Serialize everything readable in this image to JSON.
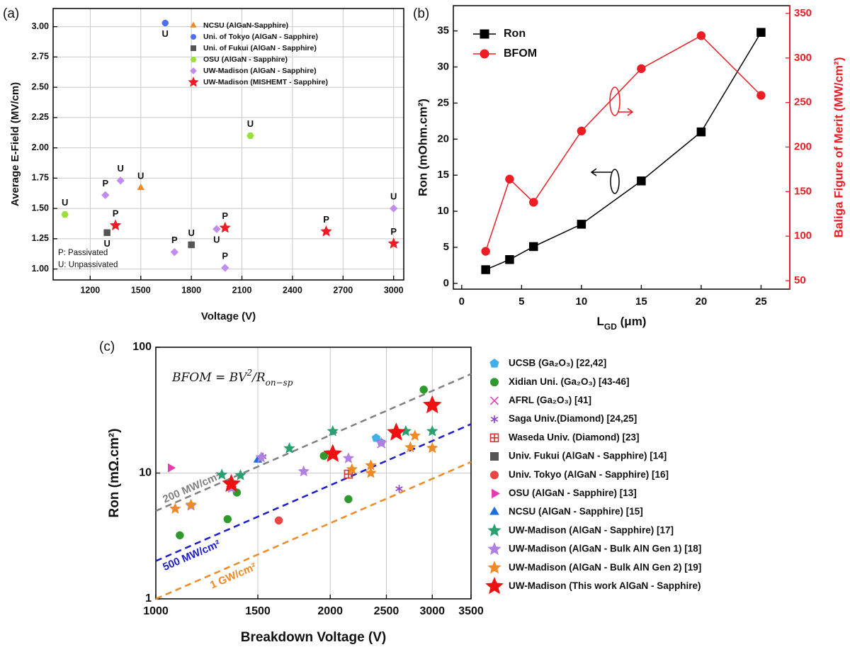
{
  "chart_data": [
    {
      "type": "scatter",
      "panel": "(a)",
      "xlabel": "Voltage (V)",
      "ylabel": "Average E-Field (MV/cm)",
      "xlim": [
        980,
        3060
      ],
      "ylim": [
        0.91,
        3.15
      ],
      "xticks": [
        1200,
        1500,
        1800,
        2100,
        2400,
        2700,
        3000
      ],
      "yticks": [
        {
          "value": 1,
          "label": "1.00"
        },
        {
          "value": 1.25,
          "label": "1.25"
        },
        {
          "value": 1.5,
          "label": "1.50"
        },
        {
          "value": 1.75,
          "label": "1.75"
        },
        {
          "value": 2,
          "label": "2.00"
        },
        {
          "value": 2.25,
          "label": "2.25"
        },
        {
          "value": 2.5,
          "label": "2.50"
        },
        {
          "value": 2.75,
          "label": "2.75"
        },
        {
          "value": 3,
          "label": "3.00"
        }
      ],
      "grid": true,
      "legend": "upper right",
      "notes": [
        "P: Passivated",
        "U: Unpassivated"
      ],
      "series": [
        {
          "name": "NCSU (AlGaN-Sapphire)",
          "color": "#f08a24",
          "marker": "triangle",
          "x": [
            1500
          ],
          "values": [
            1.67
          ],
          "point_labels": [
            "U"
          ]
        },
        {
          "name": "Uni. of Tokyo (AlGaN - Sapphire)",
          "color": "#4f6ef0",
          "marker": "circle",
          "x": [
            1645
          ],
          "values": [
            3.03
          ],
          "point_labels": [
            "U"
          ]
        },
        {
          "name": "Uni. of Fukui (AlGaN - Sapphire)",
          "color": "#555555",
          "marker": "square",
          "x": [
            1300,
            1800
          ],
          "values": [
            1.3,
            1.2
          ],
          "point_labels": [
            "U",
            "U"
          ]
        },
        {
          "name": "OSU (AlGaN - Sapphire)",
          "color": "#9be03a",
          "marker": "hexagon",
          "x": [
            1050,
            2150
          ],
          "values": [
            1.45,
            2.1
          ],
          "point_labels": [
            "U",
            "U"
          ]
        },
        {
          "name": "UW-Madison (AlGaN - Sapphire)",
          "color": "#c08cf0",
          "marker": "diamond",
          "x": [
            1290,
            1380,
            1700,
            1950,
            2000,
            3000
          ],
          "values": [
            1.61,
            1.73,
            1.14,
            1.33,
            1.01,
            1.5
          ],
          "point_labels": [
            "P",
            "U",
            "P",
            "U",
            "P",
            "U"
          ]
        },
        {
          "name": "UW-Madison (MISHEMT - Sapphire)",
          "color": "#ee1c24",
          "marker": "star",
          "x": [
            1350,
            2000,
            2600,
            3000
          ],
          "values": [
            1.36,
            1.34,
            1.31,
            1.21
          ],
          "point_labels": [
            "P",
            "P",
            "P",
            "P"
          ]
        }
      ]
    },
    {
      "type": "line",
      "panel": "(b)",
      "xlabel": [
        "L",
        "GD",
        " (μm)"
      ],
      "ylabel": "Ron (mOhm.cm²)",
      "y2label": "Baliga Figure of Merit (MW/cm²)",
      "x": [
        2,
        4,
        6,
        10,
        15,
        20,
        25
      ],
      "xlim": [
        -0.7,
        27.4
      ],
      "xticks": [
        0,
        5,
        10,
        15,
        20,
        25
      ],
      "ylim": [
        -0.8,
        38.5
      ],
      "yticks": [
        0,
        5,
        10,
        15,
        20,
        25,
        30,
        35
      ],
      "y2lim": [
        40.5,
        358.7
      ],
      "y2ticks": [
        50,
        100,
        150,
        200,
        250,
        300,
        350
      ],
      "grid": false,
      "legend": "upper left",
      "series": [
        {
          "name": "Ron",
          "color": "#000000",
          "marker": "square",
          "values": [
            1.9,
            3.3,
            5.1,
            8.2,
            14.2,
            21.0,
            34.8
          ]
        },
        {
          "name": "BFOM",
          "color": "#ee1c24",
          "marker": "circle",
          "axis": "y2",
          "values": [
            83,
            164,
            138,
            218,
            288,
            325,
            258
          ]
        }
      ]
    },
    {
      "type": "scatter",
      "panel": "(c)",
      "xlabel": "Breakdown Voltage (V)",
      "ylabel": "Ron (mΩ.cm²)",
      "formula": [
        "BFOM = BV",
        "2",
        "/R",
        "on−sp"
      ],
      "xlog": true,
      "ylog": true,
      "xlim": [
        1000,
        3500
      ],
      "ylim": [
        1,
        100
      ],
      "xticks": [
        1000,
        1500,
        2000,
        2500,
        3000,
        3500
      ],
      "yticks": [
        1,
        10,
        100
      ],
      "grid": true,
      "legend": "outside right",
      "lines": [
        {
          "label": "200 MW/cm²",
          "color": "#808080",
          "x": [
            1000,
            3500
          ],
          "values": [
            5,
            61.25
          ]
        },
        {
          "label": "500 MW/cm²",
          "color": "#1c1cd0",
          "x": [
            1000,
            3500
          ],
          "values": [
            2,
            24.5
          ]
        },
        {
          "label": "1 GW/cm²",
          "color": "#f08a24",
          "x": [
            1000,
            3500
          ],
          "values": [
            1,
            12.25
          ]
        }
      ],
      "series": [
        {
          "name": "UCSB (Ga₂O₃) [22,42]",
          "color": "#3fb0e8",
          "marker": "pentagon",
          "x": [
            2400,
            2450
          ],
          "values": [
            19,
            17.5
          ]
        },
        {
          "name": "Xidian Uni. (Ga₂O₃) [43-46]",
          "color": "#2e9a2e",
          "marker": "circle",
          "x": [
            1100,
            1330,
            1380,
            1950,
            2150,
            2900
          ],
          "values": [
            3.2,
            4.3,
            7,
            13.7,
            6.2,
            46
          ]
        },
        {
          "name": "AFRL (Ga₂O₃) [41]",
          "color": "#e040c0",
          "marker": "x",
          "x": [
            2450
          ],
          "values": [
            17
          ]
        },
        {
          "name": "Saga Univ.(Diamond) [24,25]",
          "color": "#9040d0",
          "marker": "asterisk",
          "x": [
            1530,
            2630
          ],
          "values": [
            13.5,
            7.5
          ]
        },
        {
          "name": "Waseda Univ. (Diamond) [23]",
          "color": "#e03030",
          "marker": "square-plus",
          "x": [
            2150
          ],
          "values": [
            9.8
          ]
        },
        {
          "name": "Univ. Fukui (AlGaN - Sapphire) [14]",
          "color": "#555555",
          "marker": "square",
          "x": [],
          "values": []
        },
        {
          "name": "Univ. Tokyo (AlGaN - Sapphire)  [16]",
          "color": "#ee4444",
          "marker": "circle",
          "x": [
            1630
          ],
          "values": [
            4.2
          ]
        },
        {
          "name": "OSU (AlGaN - Sapphire)  [13]",
          "color": "#e83ab0",
          "marker": "triangle-right",
          "x": [
            1060
          ],
          "values": [
            11
          ]
        },
        {
          "name": "NCSU (AlGaN - Sapphire)  [15]",
          "color": "#1e6ee0",
          "marker": "triangle",
          "x": [
            1500
          ],
          "values": [
            12.7
          ]
        },
        {
          "name": "UW-Madison (AlGaN - Sapphire)  [17]",
          "color": "#2aa070",
          "marker": "star",
          "x": [
            1300,
            1400,
            1700,
            2020,
            2700,
            3000
          ],
          "values": [
            9.7,
            9.6,
            15.7,
            21.5,
            21.5,
            21.5
          ]
        },
        {
          "name": "UW-Madison (AlGaN - Bulk AlN Gen 1)  [18]",
          "color": "#b080e0",
          "marker": "star",
          "x": [
            1150,
            1350,
            1520,
            1800,
            2150,
            2450
          ],
          "values": [
            5.5,
            7.6,
            13.3,
            10.3,
            13.1,
            17.3
          ]
        },
        {
          "name": "UW-Madison (AlGaN - Bulk AlN Gen 2)  [19]",
          "color": "#f08a24",
          "marker": "star",
          "x": [
            1080,
            1150,
            2180,
            2350,
            2350,
            2750,
            2800,
            3000
          ],
          "values": [
            5.2,
            5.6,
            10.7,
            10,
            11.5,
            16,
            19.8,
            15.8
          ]
        },
        {
          "name": "UW-Madison (This work AlGaN - Sapphire)",
          "color": "#ee1111",
          "marker": "star",
          "x": [
            1350,
            2020,
            2600,
            3000
          ],
          "values": [
            8.2,
            14.2,
            21,
            34.6
          ]
        }
      ]
    }
  ]
}
